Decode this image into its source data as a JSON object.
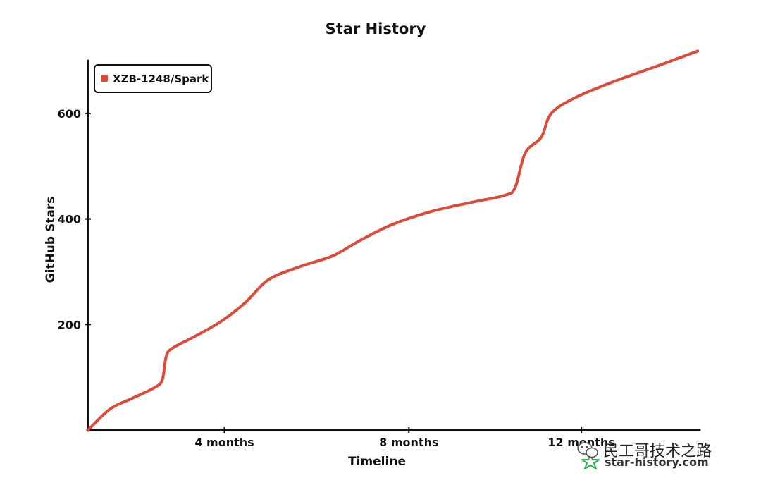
{
  "chart_data": {
    "type": "line",
    "title": "Star History",
    "xlabel": "Timeline",
    "ylabel": "GitHub Stars",
    "x_unit": "months",
    "x_range": [
      0,
      15.25
    ],
    "ylim": [
      0,
      700
    ],
    "x_ticks": [
      {
        "value": 3.4,
        "label": "4 months"
      },
      {
        "value": 8.0,
        "label": "8 months"
      },
      {
        "value": 12.3,
        "label": "12 months"
      }
    ],
    "y_ticks": [
      {
        "value": 200,
        "label": "200"
      },
      {
        "value": 400,
        "label": "400"
      },
      {
        "value": 600,
        "label": "600"
      }
    ],
    "grid": false,
    "legend_position": "top-left",
    "series": [
      {
        "name": "XZB-1248/Spark",
        "color": "#dd4a37",
        "points": [
          [
            0,
            0
          ],
          [
            0.55,
            40
          ],
          [
            1.1,
            60
          ],
          [
            1.65,
            80
          ],
          [
            1.85,
            95
          ],
          [
            1.95,
            140
          ],
          [
            2.1,
            155
          ],
          [
            2.6,
            175
          ],
          [
            3.3,
            205
          ],
          [
            3.9,
            240
          ],
          [
            4.5,
            285
          ],
          [
            5.3,
            310
          ],
          [
            6.1,
            330
          ],
          [
            6.8,
            360
          ],
          [
            7.6,
            390
          ],
          [
            8.6,
            415
          ],
          [
            9.6,
            432
          ],
          [
            10.4,
            445
          ],
          [
            10.65,
            460
          ],
          [
            10.9,
            525
          ],
          [
            11.3,
            555
          ],
          [
            11.55,
            600
          ],
          [
            12.15,
            630
          ],
          [
            13.1,
            660
          ],
          [
            14.2,
            690
          ],
          [
            15.2,
            718
          ]
        ]
      }
    ]
  },
  "watermark": {
    "site": "star-history.com",
    "wechat": "民工哥技术之路"
  }
}
